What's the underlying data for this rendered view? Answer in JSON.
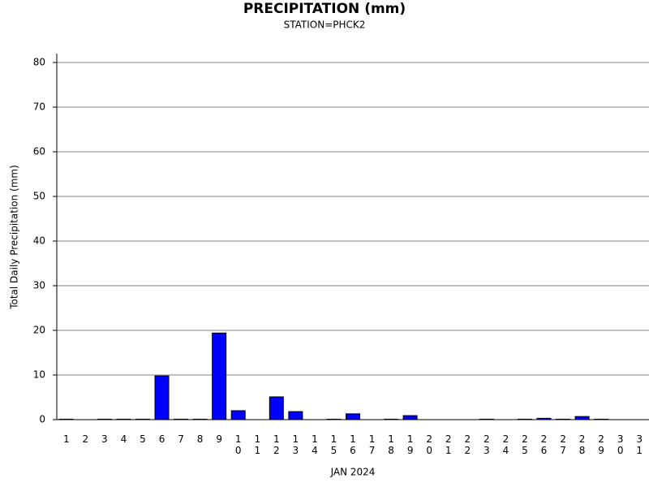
{
  "chart_data": {
    "type": "bar",
    "title": "PRECIPITATION (mm)",
    "subtitle": "STATION=PHCK2",
    "y_label": "Total Daily Precipitation (mm)",
    "x_label": "JAN 2024",
    "categories": [
      "1",
      "2",
      "3",
      "4",
      "5",
      "6",
      "7",
      "8",
      "9",
      "10",
      "11",
      "12",
      "13",
      "14",
      "15",
      "16",
      "17",
      "18",
      "19",
      "20",
      "21",
      "22",
      "23",
      "24",
      "25",
      "26",
      "27",
      "28",
      "29",
      "30",
      "31"
    ],
    "values": [
      0.1,
      0,
      0.1,
      0.1,
      0.1,
      9.8,
      0.1,
      0.1,
      19.4,
      2.0,
      0,
      5.1,
      1.8,
      0,
      0.1,
      1.3,
      0,
      0.1,
      0.9,
      0,
      0,
      0,
      0.1,
      0,
      0.1,
      0.3,
      0.1,
      0.7,
      0.1,
      0,
      0
    ],
    "color": "#0000ff",
    "ylim": [
      0,
      82
    ],
    "yticks": [
      0,
      10,
      20,
      30,
      40,
      50,
      60,
      70,
      80
    ],
    "grid": true
  }
}
